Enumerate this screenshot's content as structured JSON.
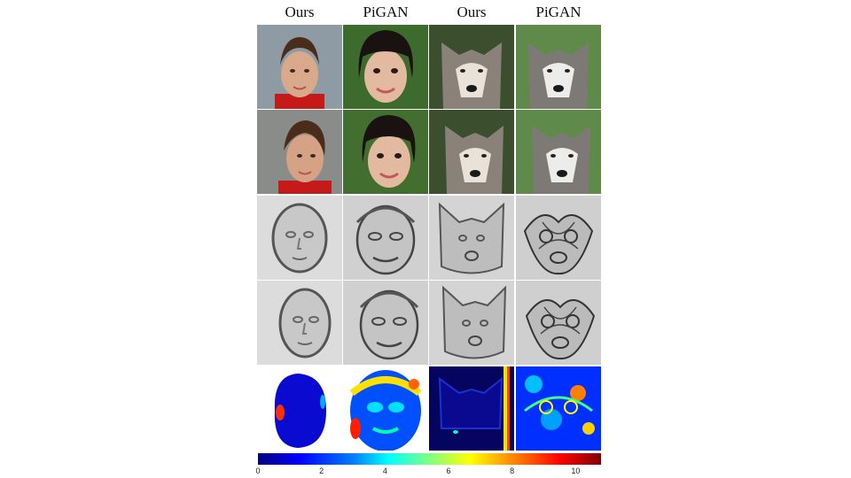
{
  "columns": [
    "Ours",
    "PiGAN",
    "Ours",
    "PiGAN"
  ],
  "colorbar": {
    "ticks": [
      "0",
      "2",
      "4",
      "6",
      "8",
      "10"
    ],
    "min": 0,
    "max": 10.8
  }
}
